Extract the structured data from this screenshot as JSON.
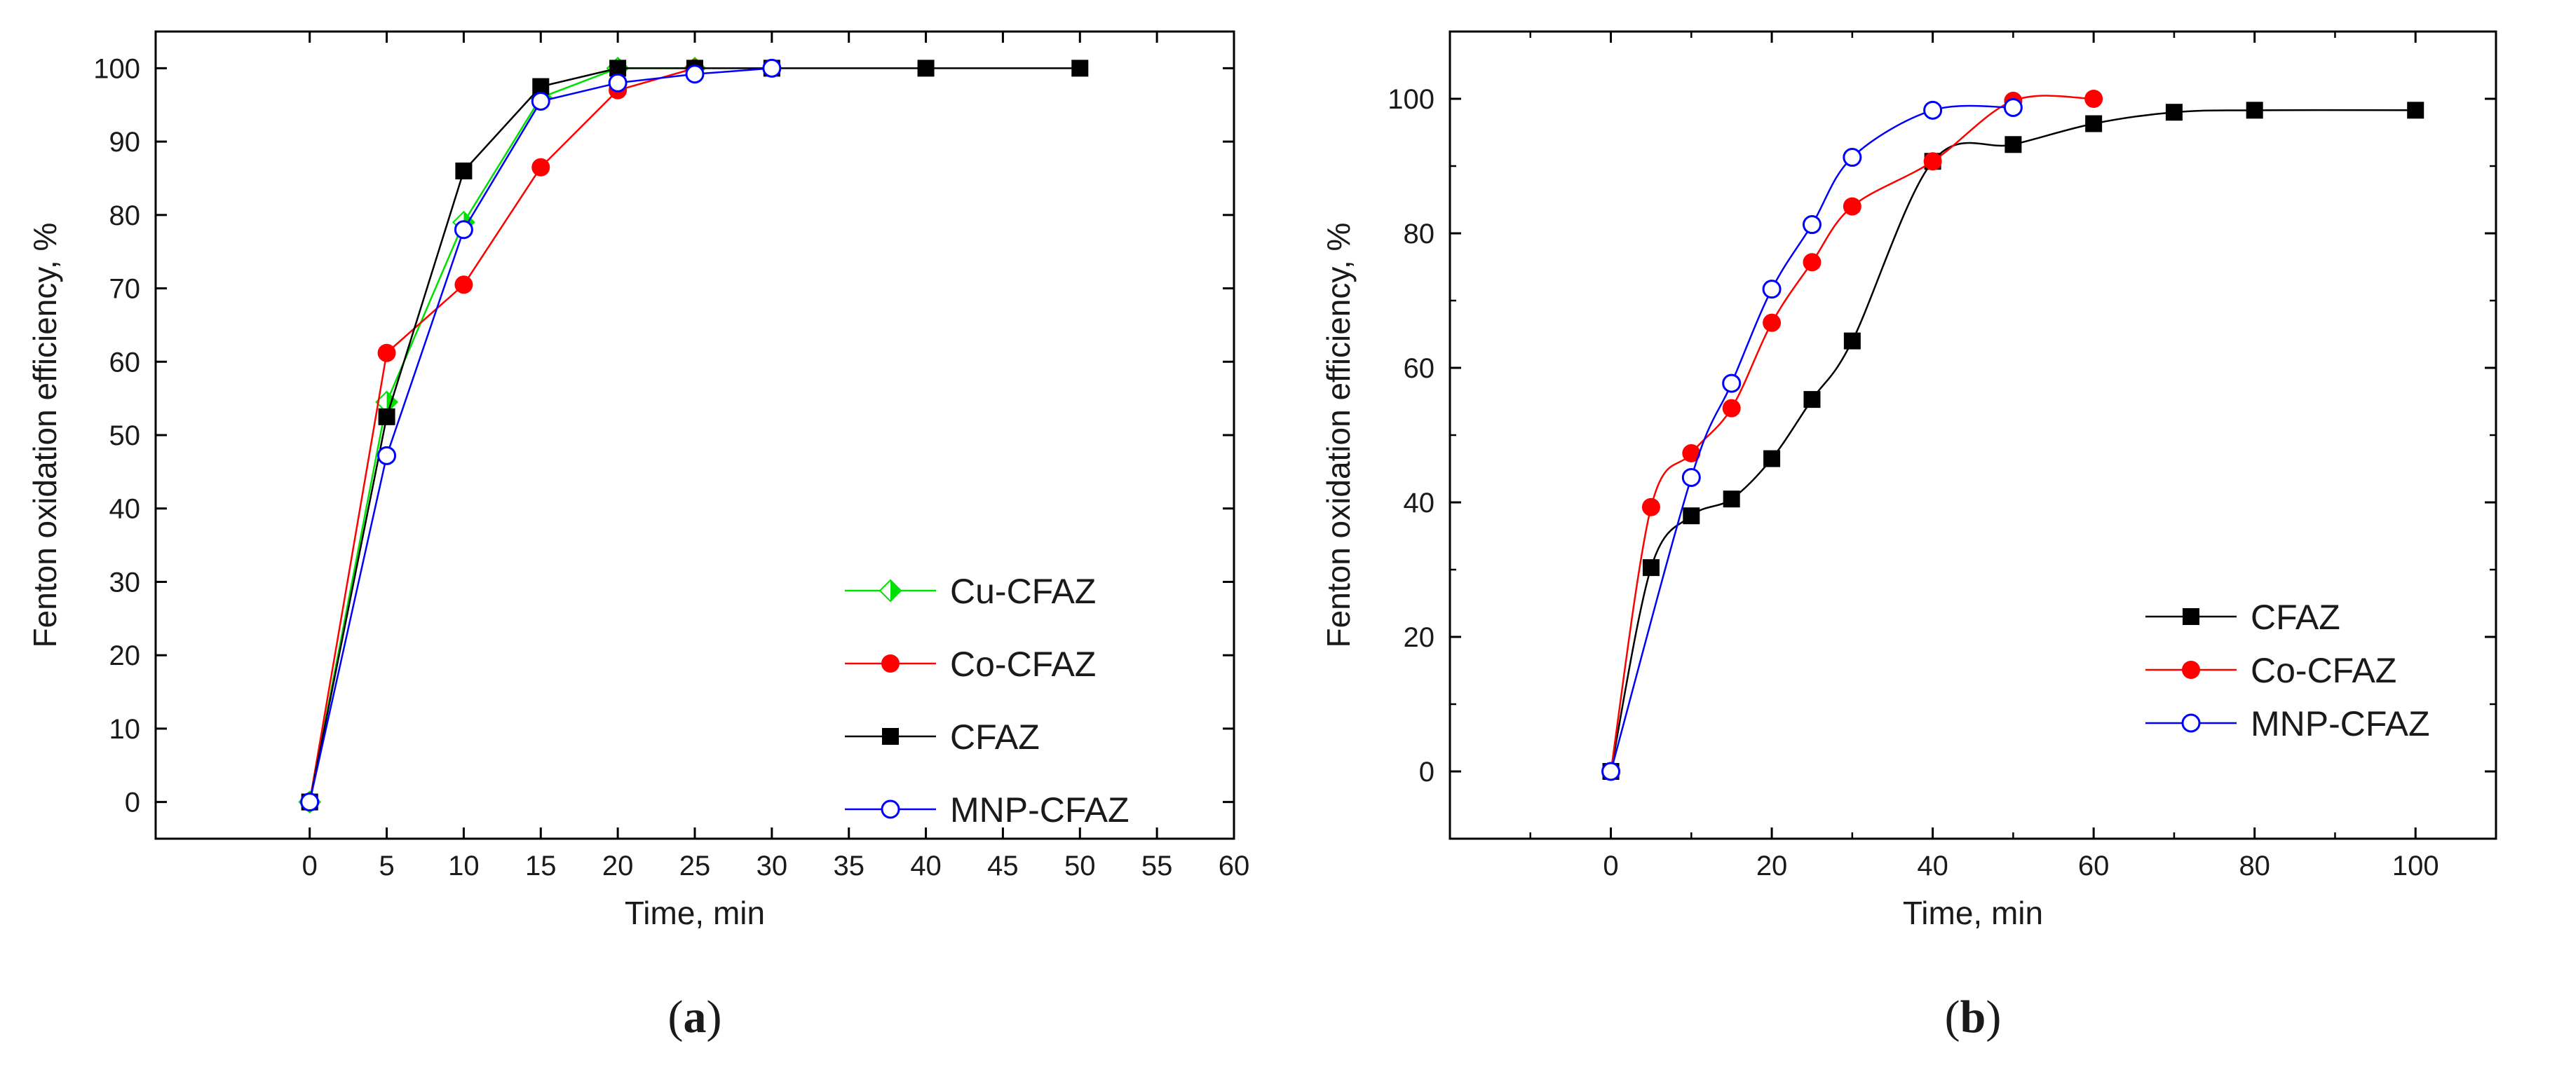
{
  "chart_data": [
    {
      "id": "a",
      "type": "line",
      "panel_label": "(a)",
      "panel_letter": "a",
      "title": "",
      "xlabel": "Time, min",
      "ylabel": "Fenton oxidation efficiency, %",
      "xlim": [
        -10,
        60
      ],
      "ylim": [
        -5,
        105
      ],
      "xticks": [
        0,
        5,
        10,
        15,
        20,
        25,
        30,
        35,
        40,
        45,
        50,
        55,
        60
      ],
      "yticks": [
        0,
        10,
        20,
        30,
        40,
        50,
        60,
        70,
        80,
        90,
        100
      ],
      "xticks_minor": [],
      "yticks_minor": [],
      "legend_position": "lower-right",
      "smooth": false,
      "series": [
        {
          "name": "Cu-CFAZ",
          "color": "#00e000",
          "marker": "diamond-half",
          "x": [
            0,
            5,
            10,
            15,
            20,
            25
          ],
          "y": [
            0,
            54.5,
            79,
            96,
            100,
            100
          ]
        },
        {
          "name": "Co-CFAZ",
          "color": "#ff0000",
          "marker": "circle-filled",
          "x": [
            0,
            5,
            10,
            15,
            20,
            25
          ],
          "y": [
            0,
            61.2,
            70.5,
            86.5,
            97,
            100
          ]
        },
        {
          "name": "CFAZ",
          "color": "#000000",
          "marker": "square-filled",
          "x": [
            0,
            5,
            10,
            15,
            20,
            25,
            30,
            40,
            50
          ],
          "y": [
            0,
            52.5,
            86,
            97.5,
            100,
            100,
            100,
            100,
            100
          ]
        },
        {
          "name": "MNP-CFAZ",
          "color": "#0000ff",
          "marker": "circle-open",
          "x": [
            0,
            5,
            10,
            15,
            20,
            25,
            30
          ],
          "y": [
            0,
            47.2,
            78,
            95.5,
            98,
            99.2,
            100
          ]
        }
      ]
    },
    {
      "id": "b",
      "type": "line",
      "panel_label": "(b)",
      "panel_letter": "b",
      "title": "",
      "xlabel": "Time, min",
      "ylabel": "Fenton oxidation efficiency, %",
      "xlim": [
        -20,
        110
      ],
      "ylim": [
        -10,
        110
      ],
      "xticks": [
        0,
        20,
        40,
        60,
        80,
        100
      ],
      "yticks": [
        0,
        20,
        40,
        60,
        80,
        100
      ],
      "xticks_minor": [
        -10,
        10,
        30,
        50,
        70,
        90
      ],
      "yticks_minor": [
        10,
        30,
        50,
        70,
        90
      ],
      "legend_position": "lower-right",
      "smooth": true,
      "series": [
        {
          "name": "CFAZ",
          "color": "#000000",
          "marker": "square-filled",
          "x": [
            0,
            5,
            10,
            15,
            20,
            25,
            30,
            40,
            50,
            60,
            70,
            80,
            100
          ],
          "y": [
            0,
            30.3,
            38,
            40.5,
            46.5,
            55.3,
            64,
            90.7,
            93.2,
            96.3,
            98,
            98.3,
            98.3
          ]
        },
        {
          "name": "Co-CFAZ",
          "color": "#ff0000",
          "marker": "circle-filled",
          "x": [
            0,
            5,
            10,
            15,
            20,
            25,
            30,
            40,
            50,
            60
          ],
          "y": [
            0,
            39.3,
            47.3,
            54,
            66.7,
            75.7,
            84,
            90.7,
            99.7,
            100
          ]
        },
        {
          "name": "MNP-CFAZ",
          "color": "#0000ff",
          "marker": "circle-open",
          "x": [
            0,
            10,
            15,
            20,
            25,
            30,
            40,
            50
          ],
          "y": [
            0,
            43.7,
            57.7,
            71.7,
            81.3,
            91.3,
            98.3,
            98.7
          ]
        }
      ]
    }
  ]
}
